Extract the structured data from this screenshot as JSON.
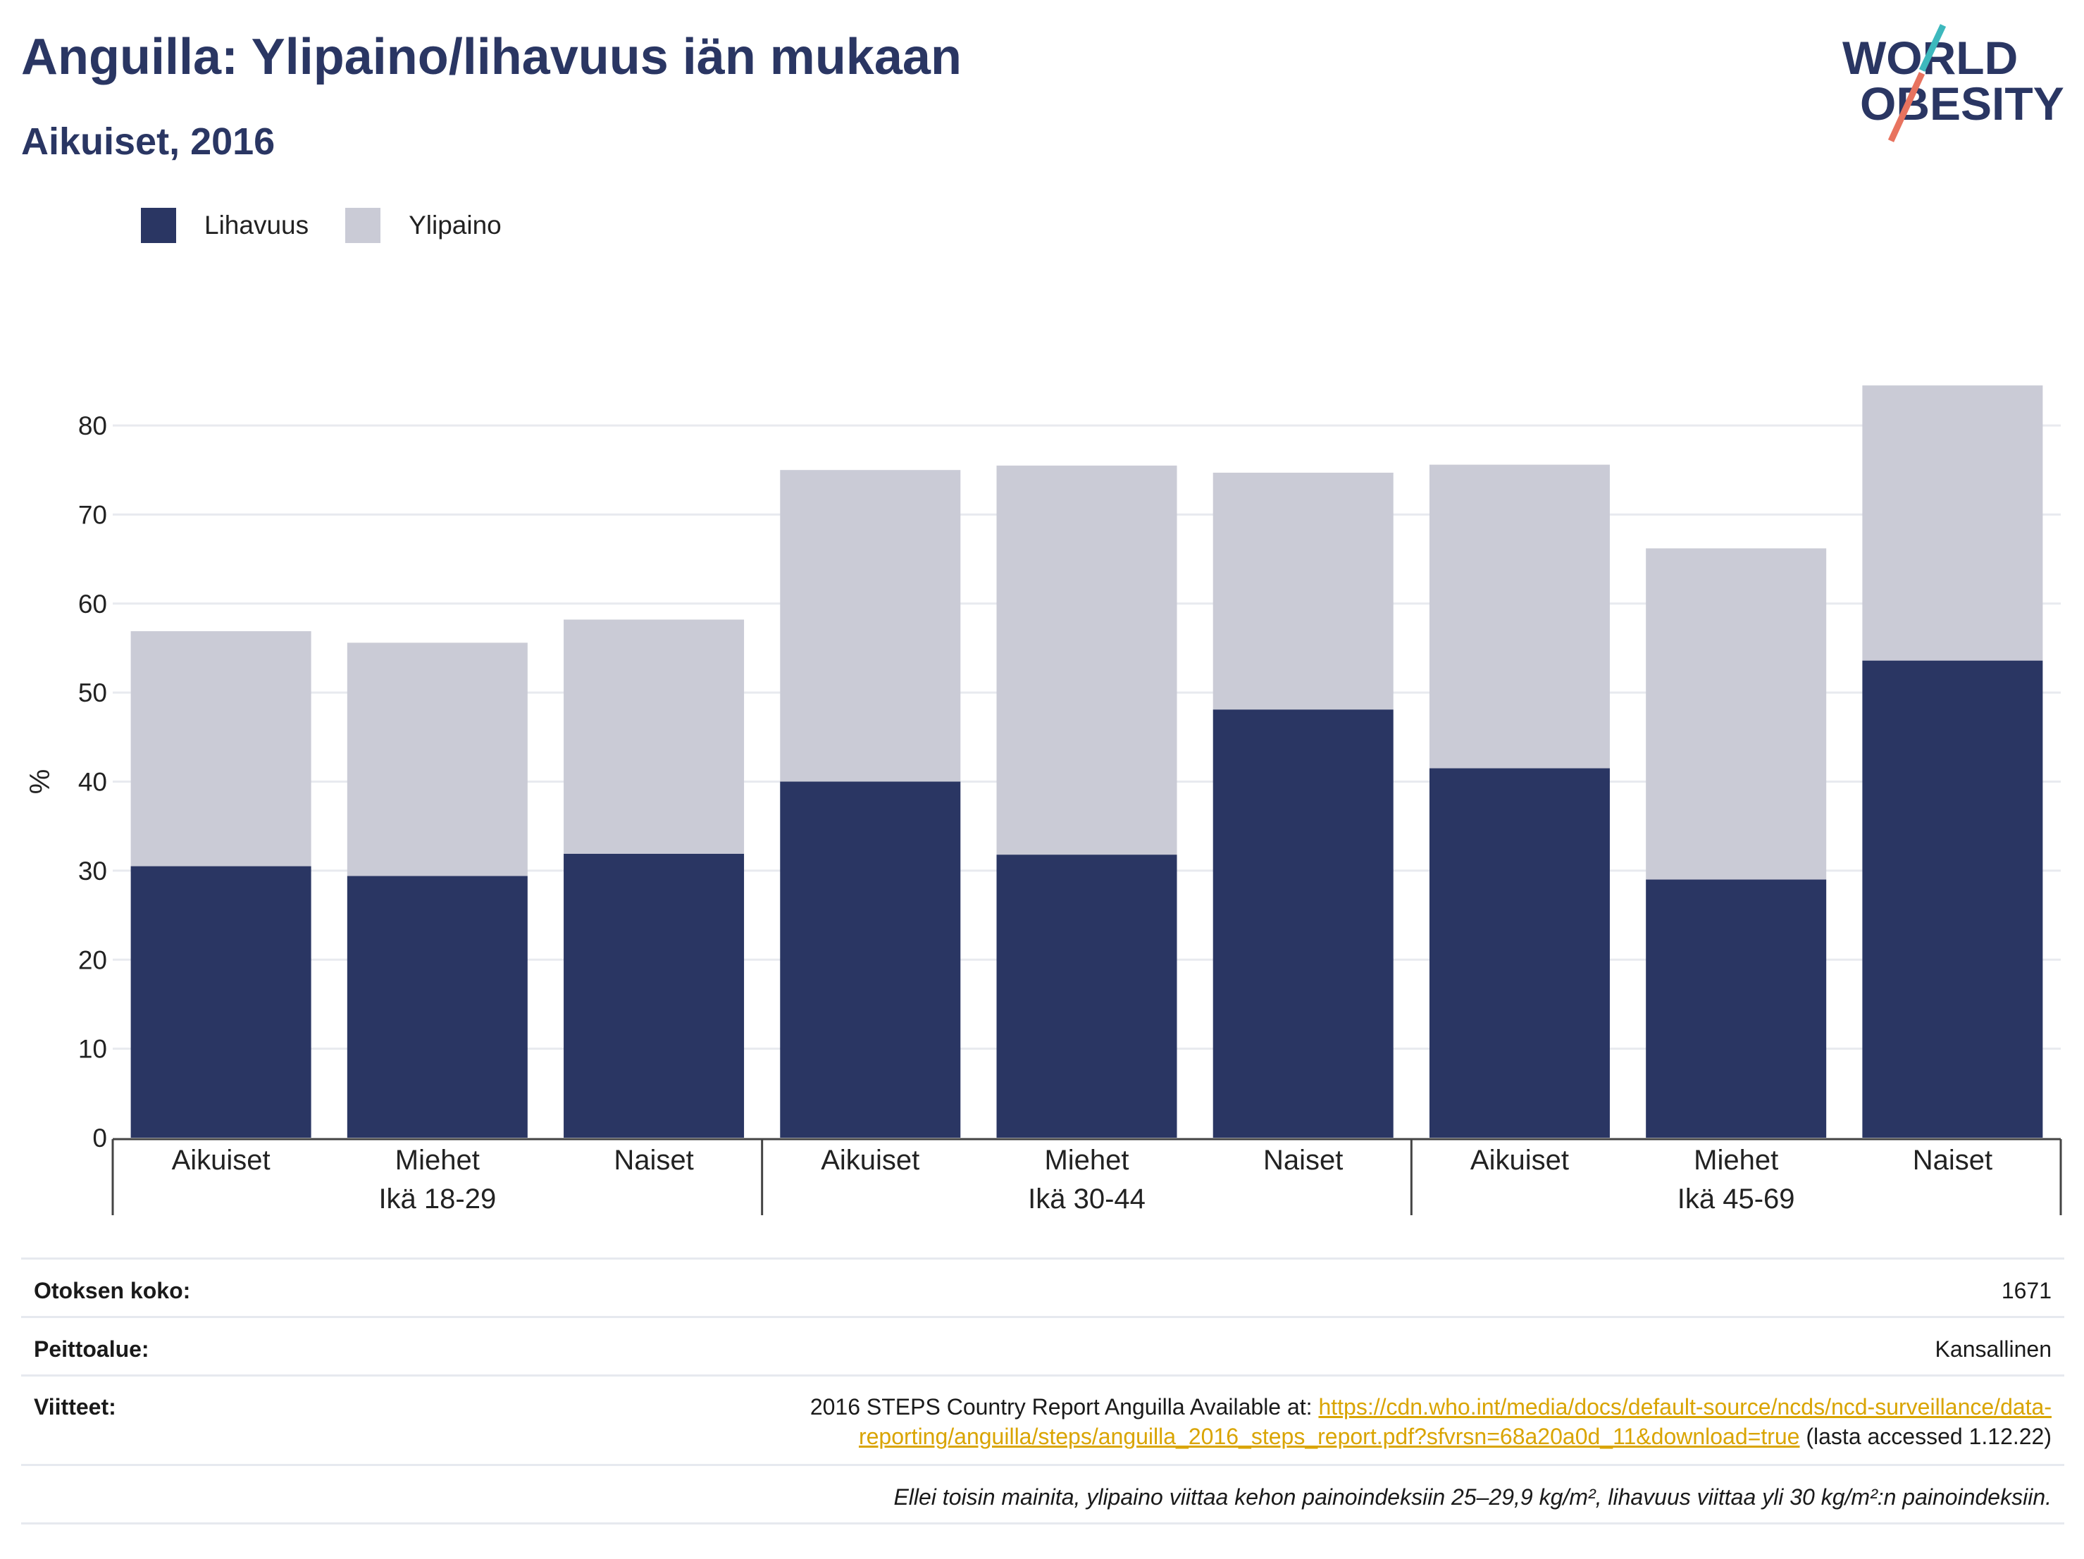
{
  "header": {
    "title": "Anguilla: Ylipaino/lihavuus iän mukaan",
    "subtitle": "Aikuiset, 2016",
    "logo_line1": "WORLD",
    "logo_line2": "OBESITY"
  },
  "colors": {
    "obesity": "#2a3663",
    "overweight": "#cacbd6",
    "logo_text": "#2a3663",
    "logo_teal": "#3db8bd",
    "logo_coral": "#e8735f",
    "link": "#d9a400"
  },
  "chart_data": {
    "type": "bar",
    "stacked": true,
    "ylabel": "%",
    "ylim": [
      0,
      87
    ],
    "yticks": [
      0,
      10,
      20,
      30,
      40,
      50,
      60,
      70,
      80
    ],
    "grid": true,
    "legend_position": "top-left",
    "categories": [
      "Aikuiset",
      "Miehet",
      "Naiset",
      "Aikuiset",
      "Miehet",
      "Naiset",
      "Aikuiset",
      "Miehet",
      "Naiset"
    ],
    "groups": [
      {
        "label": "Ikä 18-29",
        "count": 3
      },
      {
        "label": "Ikä 30-44",
        "count": 3
      },
      {
        "label": "Ikä 45-69",
        "count": 3
      }
    ],
    "series": [
      {
        "name": "Lihavuus",
        "values": [
          30.5,
          29.4,
          31.9,
          40.0,
          31.8,
          48.1,
          41.5,
          29.0,
          53.6
        ]
      },
      {
        "name": "Ylipaino",
        "values": [
          26.4,
          26.2,
          26.3,
          35.0,
          43.7,
          26.6,
          34.1,
          37.2,
          30.9
        ]
      }
    ]
  },
  "info": {
    "sample_label": "Otoksen koko:",
    "sample_value": "1671",
    "coverage_label": "Peittoalue:",
    "coverage_value": "Kansallinen",
    "refs_label": "Viitteet:",
    "refs_text": "2016 STEPS Country Report Anguilla Available at: ",
    "refs_link_1": "https://cdn.who.int/media/docs/default-source/ncds/ncd-surveillance/data-",
    "refs_link_2": "reporting/anguilla/steps/anguilla_2016_steps_report.pdf?sfvrsn=68a20a0d_11&download=true",
    "refs_suffix": " (lasta accessed 1.12.22)",
    "note": "Ellei toisin mainita, ylipaino viittaa kehon painoindeksiin 25–29,9 kg/m², lihavuus viittaa yli 30 kg/m²:n painoindeksiin."
  }
}
